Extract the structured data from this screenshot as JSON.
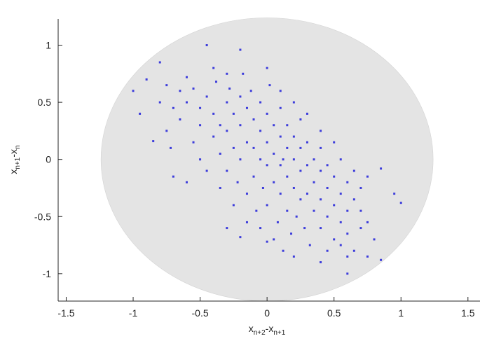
{
  "chart_data": {
    "type": "scatter",
    "xlabel": [
      "x",
      "n+2",
      "-x",
      "n+1"
    ],
    "ylabel": [
      "x",
      "n+1",
      "-x",
      "n"
    ],
    "xlim": [
      -1.56,
      1.59
    ],
    "ylim": [
      -1.24,
      1.23
    ],
    "xticks": [
      -1.5,
      -1,
      -0.5,
      0,
      0.5,
      1,
      1.5
    ],
    "yticks": [
      -1,
      -0.5,
      0,
      0.5,
      1
    ],
    "disk": {
      "center": [
        0,
        0
      ],
      "radius": 1.24,
      "color": "#e4e4e4"
    },
    "series": [
      {
        "color": "#3d3ddb",
        "x": [
          -1.0,
          -0.45,
          -0.2,
          -0.8,
          -0.9,
          -0.95,
          -0.85,
          -0.72,
          -0.7,
          -0.6,
          -0.3,
          -0.2,
          0.0,
          0.45,
          0.6,
          0.75,
          0.85,
          0.6,
          0.95,
          1.0,
          0.85,
          0.8,
          0.7,
          0.4,
          0.2,
          -0.6,
          -0.55,
          -0.5,
          -0.5,
          -0.45,
          -0.4,
          -0.4,
          -0.38,
          -0.35,
          -0.35,
          -0.3,
          -0.3,
          -0.3,
          -0.28,
          -0.25,
          -0.25,
          -0.22,
          -0.2,
          -0.2,
          -0.2,
          -0.18,
          -0.15,
          -0.15,
          -0.15,
          -0.12,
          -0.1,
          -0.1,
          -0.1,
          -0.08,
          -0.05,
          -0.05,
          -0.05,
          -0.03,
          0.0,
          0.0,
          0.0,
          0.0,
          0.02,
          0.05,
          0.05,
          0.05,
          0.08,
          0.1,
          0.1,
          0.1,
          0.1,
          0.12,
          0.15,
          0.15,
          0.15,
          0.15,
          0.18,
          0.2,
          0.2,
          0.2,
          0.22,
          0.25,
          0.25,
          0.25,
          0.25,
          0.28,
          0.3,
          0.3,
          0.3,
          0.32,
          0.35,
          0.35,
          0.35,
          0.4,
          0.4,
          0.4,
          0.4,
          0.45,
          0.45,
          0.45,
          0.5,
          0.5,
          0.5,
          0.55,
          0.55,
          0.55,
          0.6,
          0.6,
          0.6,
          0.65,
          0.65,
          0.7,
          0.7,
          0.75,
          0.75,
          -0.65,
          -0.65,
          -0.7,
          -0.75,
          -0.75,
          -0.8,
          -0.55,
          -0.5,
          -0.45,
          -0.6,
          -0.35,
          -0.25,
          -0.15,
          -0.05,
          0.05,
          0.12,
          0.0,
          0.1,
          0.2,
          0.3,
          -0.4,
          -0.3,
          0.4,
          0.5,
          0.65,
          0.55
        ],
        "values": [
          0.6,
          1.0,
          0.96,
          0.85,
          0.7,
          0.4,
          0.16,
          0.1,
          -0.15,
          -0.2,
          -0.6,
          -0.68,
          -0.72,
          -0.8,
          -0.85,
          -0.85,
          -0.88,
          -1.0,
          -0.3,
          -0.38,
          -0.08,
          -0.7,
          -0.6,
          -0.9,
          -0.85,
          0.5,
          0.62,
          0.45,
          0.3,
          0.55,
          0.4,
          0.2,
          0.68,
          0.3,
          0.05,
          0.5,
          0.25,
          -0.1,
          0.62,
          0.4,
          0.1,
          -0.2,
          0.55,
          0.3,
          0.0,
          0.75,
          0.45,
          0.15,
          -0.3,
          0.6,
          0.35,
          0.1,
          -0.15,
          -0.45,
          0.5,
          0.25,
          0.0,
          -0.25,
          0.4,
          0.15,
          -0.05,
          -0.4,
          0.65,
          0.3,
          0.05,
          -0.2,
          -0.55,
          0.45,
          0.2,
          -0.05,
          -0.3,
          0.0,
          0.3,
          0.1,
          -0.15,
          -0.45,
          -0.65,
          0.2,
          0.0,
          -0.25,
          -0.5,
          0.35,
          0.1,
          -0.1,
          -0.35,
          -0.6,
          0.15,
          -0.05,
          -0.3,
          -0.75,
          0.0,
          -0.2,
          -0.45,
          0.1,
          -0.1,
          -0.35,
          -0.6,
          -0.05,
          -0.25,
          -0.5,
          -0.15,
          -0.4,
          -0.7,
          0.0,
          -0.3,
          -0.55,
          -0.2,
          -0.45,
          -0.65,
          -0.1,
          -0.35,
          -0.25,
          -0.45,
          -0.15,
          -0.55,
          0.35,
          0.6,
          0.45,
          0.25,
          0.65,
          0.5,
          0.15,
          0.0,
          -0.1,
          0.72,
          -0.25,
          -0.4,
          -0.55,
          -0.6,
          -0.7,
          -0.8,
          0.8,
          0.6,
          0.5,
          0.4,
          0.8,
          0.75,
          0.25,
          0.15,
          -0.8,
          -0.75
        ]
      }
    ]
  }
}
